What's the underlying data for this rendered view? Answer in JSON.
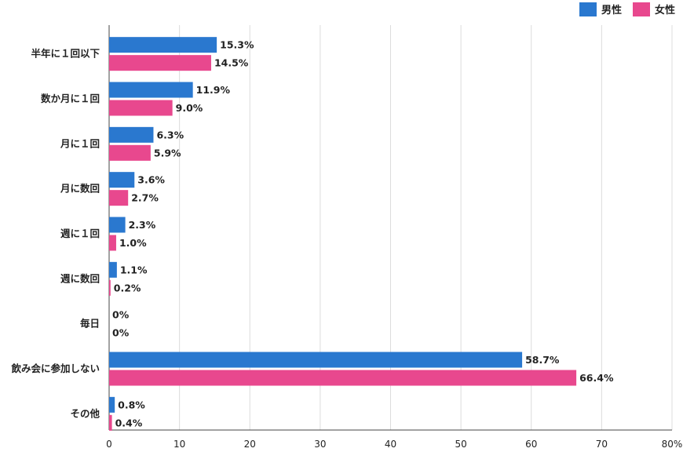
{
  "chart_data": {
    "type": "bar",
    "orientation": "horizontal",
    "categories": [
      "半年に１回以下",
      "数か月に１回",
      "月に１回",
      "月に数回",
      "週に１回",
      "週に数回",
      "毎日",
      "飲み会に参加しない",
      "その他"
    ],
    "series": [
      {
        "name": "男性",
        "color": "#2a78cf",
        "values": [
          15.3,
          11.9,
          6.3,
          3.6,
          2.3,
          1.1,
          0,
          58.7,
          0.8
        ],
        "labels": [
          "15.3%",
          "11.9%",
          "6.3%",
          "3.6%",
          "2.3%",
          "1.1%",
          "0%",
          "58.7%",
          "0.8%"
        ]
      },
      {
        "name": "女性",
        "color": "#e8488e",
        "values": [
          14.5,
          9.0,
          5.9,
          2.7,
          1.0,
          0.2,
          0,
          66.4,
          0.4
        ],
        "labels": [
          "14.5%",
          "9.0%",
          "5.9%",
          "2.7%",
          "1.0%",
          "0.2%",
          "0%",
          "66.4%",
          "0.4%"
        ]
      }
    ],
    "xlim": [
      0,
      80
    ],
    "xticks": [
      "0",
      "10",
      "20",
      "30",
      "40",
      "50",
      "60",
      "70",
      "80%"
    ],
    "grid": true,
    "legend_position": "top-right"
  }
}
